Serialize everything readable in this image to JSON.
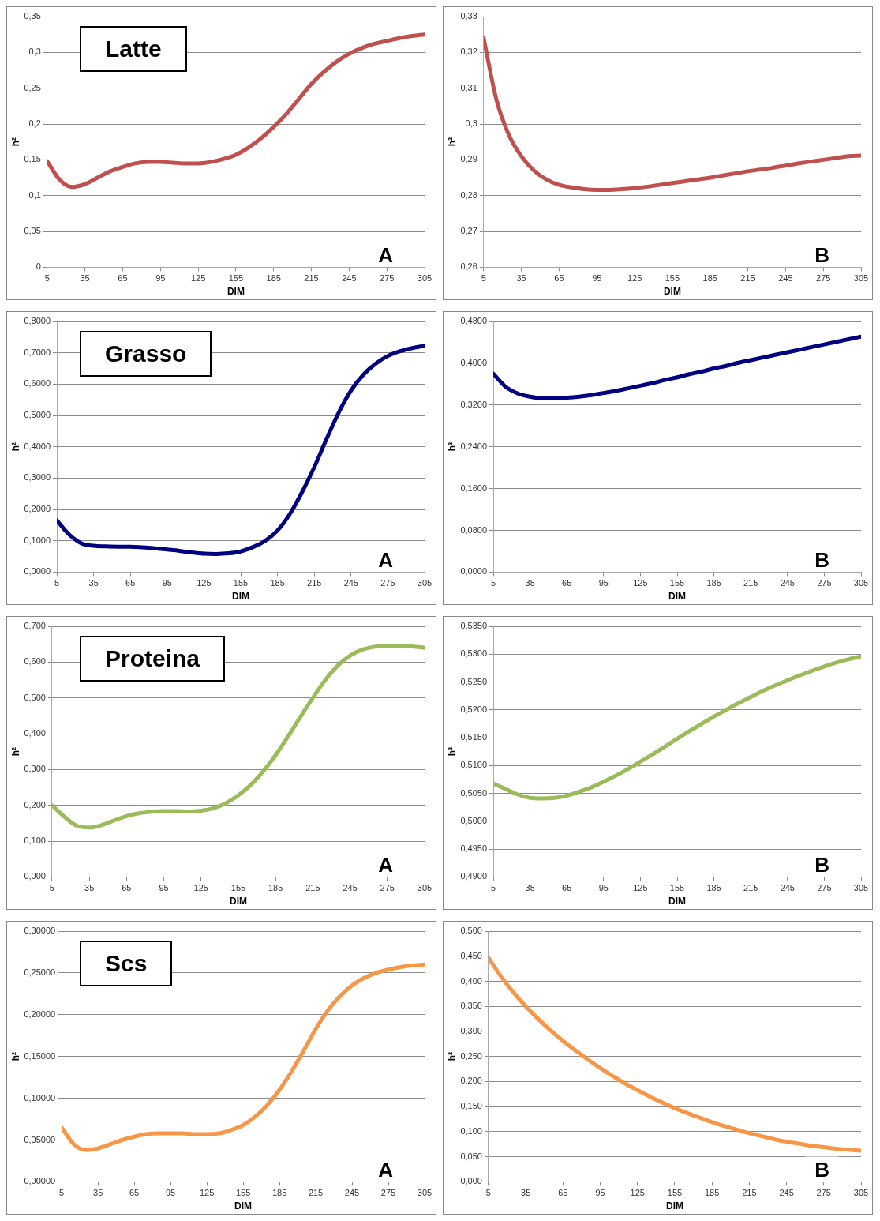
{
  "chart_data": [
    {
      "type": "line",
      "title": "Latte",
      "xlabel": "DIM",
      "ylabel": "h²",
      "annotations": [
        "A"
      ],
      "marker": "none",
      "grid": "y",
      "xlim": [
        5,
        305
      ],
      "xticks": [
        5,
        35,
        65,
        95,
        125,
        155,
        185,
        215,
        245,
        275,
        305
      ],
      "x": [
        5,
        15,
        25,
        35,
        45,
        55,
        65,
        75,
        85,
        95,
        105,
        115,
        125,
        135,
        145,
        155,
        165,
        175,
        185,
        195,
        205,
        215,
        225,
        235,
        245,
        255,
        265,
        275,
        285,
        295,
        305
      ],
      "series": [
        {
          "color": "#c0504d",
          "values": [
            0.148,
            0.122,
            0.112,
            0.116,
            0.125,
            0.134,
            0.14,
            0.145,
            0.147,
            0.147,
            0.146,
            0.145,
            0.145,
            0.147,
            0.151,
            0.157,
            0.167,
            0.18,
            0.196,
            0.214,
            0.235,
            0.256,
            0.273,
            0.287,
            0.298,
            0.306,
            0.312,
            0.316,
            0.32,
            0.323,
            0.325
          ]
        }
      ],
      "ylim": [
        0,
        0.35
      ],
      "yticks": [
        0,
        {
          "value": 0.05,
          "label": "0,05"
        },
        {
          "value": 0.1,
          "label": "0,1"
        },
        {
          "value": 0.15,
          "label": "0,15"
        },
        {
          "value": 0.2,
          "label": "0,2"
        },
        {
          "value": 0.25,
          "label": "0,25"
        },
        {
          "value": 0.3,
          "label": "0,3"
        },
        {
          "value": 0.35,
          "label": "0,35"
        }
      ]
    },
    {
      "type": "line",
      "xlabel": "DIM",
      "ylabel": "h²",
      "annotations": [
        "B"
      ],
      "marker": "none",
      "grid": "y",
      "xlim": [
        5,
        305
      ],
      "xticks": [
        5,
        35,
        65,
        95,
        125,
        155,
        185,
        215,
        245,
        275,
        305
      ],
      "x": [
        5,
        15,
        25,
        35,
        45,
        55,
        65,
        75,
        85,
        95,
        105,
        115,
        125,
        135,
        145,
        155,
        165,
        175,
        185,
        195,
        205,
        215,
        225,
        235,
        245,
        255,
        265,
        275,
        285,
        295,
        305
      ],
      "series": [
        {
          "color": "#c0504d",
          "values": [
            0.324,
            0.307,
            0.297,
            0.291,
            0.287,
            0.2845,
            0.283,
            0.2823,
            0.2818,
            0.2816,
            0.2816,
            0.2818,
            0.2821,
            0.2825,
            0.283,
            0.2835,
            0.284,
            0.2845,
            0.285,
            0.2856,
            0.2862,
            0.2868,
            0.2873,
            0.2878,
            0.2884,
            0.289,
            0.2895,
            0.29,
            0.2905,
            0.291,
            0.2912
          ]
        }
      ],
      "ylim": [
        0.26,
        0.33
      ],
      "yticks": [
        {
          "value": 0.26,
          "label": "0,26"
        },
        {
          "value": 0.27,
          "label": "0,27"
        },
        {
          "value": 0.28,
          "label": "0,28"
        },
        {
          "value": 0.29,
          "label": "0,29"
        },
        {
          "value": 0.3,
          "label": "0,3"
        },
        {
          "value": 0.31,
          "label": "0,31"
        },
        {
          "value": 0.32,
          "label": "0,32"
        },
        {
          "value": 0.33,
          "label": "0,33"
        }
      ]
    },
    {
      "type": "line",
      "title": "Grasso",
      "xlabel": "DIM",
      "ylabel": "h²",
      "annotations": [
        "A"
      ],
      "marker": "none",
      "grid": "y",
      "xlim": [
        5,
        305
      ],
      "xticks": [
        5,
        35,
        65,
        95,
        125,
        155,
        185,
        215,
        245,
        275,
        305
      ],
      "x": [
        5,
        15,
        25,
        35,
        45,
        55,
        65,
        75,
        85,
        95,
        105,
        115,
        125,
        135,
        145,
        155,
        165,
        175,
        185,
        195,
        205,
        215,
        225,
        235,
        245,
        255,
        265,
        275,
        285,
        295,
        305
      ],
      "series": [
        {
          "color": "#000080",
          "values": [
            0.165,
            0.12,
            0.092,
            0.084,
            0.082,
            0.081,
            0.081,
            0.079,
            0.076,
            0.072,
            0.068,
            0.063,
            0.059,
            0.058,
            0.06,
            0.066,
            0.08,
            0.1,
            0.133,
            0.185,
            0.255,
            0.335,
            0.425,
            0.51,
            0.58,
            0.63,
            0.665,
            0.69,
            0.705,
            0.715,
            0.722
          ]
        }
      ],
      "ylim": [
        0,
        0.8
      ],
      "yticks": [
        {
          "value": 0,
          "label": "0,0000"
        },
        {
          "value": 0.1,
          "label": "0,1000"
        },
        {
          "value": 0.2,
          "label": "0,2000"
        },
        {
          "value": 0.3,
          "label": "0,3000"
        },
        {
          "value": 0.4,
          "label": "0,4000"
        },
        {
          "value": 0.5,
          "label": "0,5000"
        },
        {
          "value": 0.6,
          "label": "0,6000"
        },
        {
          "value": 0.7,
          "label": "0,7000"
        },
        {
          "value": 0.8,
          "label": "0,8000"
        }
      ]
    },
    {
      "type": "line",
      "ylabel": "h²",
      "annotations": [
        "B"
      ],
      "marker": "none",
      "grid": "y",
      "xlim": [
        5,
        305
      ],
      "xticks": [
        5,
        35,
        65,
        95,
        125,
        155,
        185,
        215,
        245,
        275,
        305
      ],
      "xlabel": "DIM",
      "x": [
        5,
        15,
        25,
        35,
        45,
        55,
        65,
        75,
        85,
        95,
        105,
        115,
        125,
        135,
        145,
        155,
        165,
        175,
        185,
        195,
        205,
        215,
        225,
        235,
        245,
        255,
        265,
        275,
        285,
        295,
        305
      ],
      "series": [
        {
          "color": "#000080",
          "values": [
            0.38,
            0.355,
            0.342,
            0.336,
            0.333,
            0.333,
            0.334,
            0.336,
            0.339,
            0.343,
            0.347,
            0.352,
            0.357,
            0.362,
            0.368,
            0.373,
            0.379,
            0.384,
            0.39,
            0.395,
            0.401,
            0.406,
            0.411,
            0.416,
            0.421,
            0.426,
            0.431,
            0.436,
            0.441,
            0.446,
            0.451
          ]
        }
      ],
      "ylim": [
        0,
        0.48
      ],
      "yticks": [
        {
          "value": 0,
          "label": "0,0000"
        },
        {
          "value": 0.08,
          "label": "0,0800"
        },
        {
          "value": 0.16,
          "label": "0,1600"
        },
        {
          "value": 0.24,
          "label": "0,2400"
        },
        {
          "value": 0.32,
          "label": "0,3200"
        },
        {
          "value": 0.4,
          "label": "0,4000"
        },
        {
          "value": 0.48,
          "label": "0,4800"
        }
      ]
    },
    {
      "type": "line",
      "title": "Proteina",
      "xlabel": "DIM",
      "ylabel": "h²",
      "annotations": [
        "A"
      ],
      "marker": "none",
      "grid": "y",
      "xlim": [
        5,
        305
      ],
      "xticks": [
        5,
        35,
        65,
        95,
        125,
        155,
        185,
        215,
        245,
        275,
        305
      ],
      "x": [
        5,
        15,
        25,
        35,
        45,
        55,
        65,
        75,
        85,
        95,
        105,
        115,
        125,
        135,
        145,
        155,
        165,
        175,
        185,
        195,
        205,
        215,
        225,
        235,
        245,
        255,
        265,
        275,
        285,
        295,
        305
      ],
      "series": [
        {
          "color": "#9bbb59",
          "values": [
            0.2,
            0.168,
            0.143,
            0.138,
            0.145,
            0.158,
            0.17,
            0.178,
            0.182,
            0.184,
            0.184,
            0.183,
            0.185,
            0.192,
            0.206,
            0.228,
            0.257,
            0.295,
            0.34,
            0.392,
            0.447,
            0.5,
            0.55,
            0.59,
            0.618,
            0.635,
            0.643,
            0.646,
            0.646,
            0.644,
            0.64
          ]
        }
      ],
      "ylim": [
        0,
        0.7
      ],
      "yticks": [
        {
          "value": 0,
          "label": "0,000"
        },
        {
          "value": 0.1,
          "label": "0,100"
        },
        {
          "value": 0.2,
          "label": "0,200"
        },
        {
          "value": 0.3,
          "label": "0,300"
        },
        {
          "value": 0.4,
          "label": "0,400"
        },
        {
          "value": 0.5,
          "label": "0,500"
        },
        {
          "value": 0.6,
          "label": "0,600"
        },
        {
          "value": 0.7,
          "label": "0,700"
        }
      ]
    },
    {
      "type": "line",
      "xlabel": "DIM",
      "ylabel": "h²",
      "annotations": [
        "B"
      ],
      "marker": "none",
      "grid": "y",
      "xlim": [
        5,
        305
      ],
      "xticks": [
        5,
        35,
        65,
        95,
        125,
        155,
        185,
        215,
        245,
        275,
        305
      ],
      "x": [
        5,
        15,
        25,
        35,
        45,
        55,
        65,
        75,
        85,
        95,
        105,
        115,
        125,
        135,
        145,
        155,
        165,
        175,
        185,
        195,
        205,
        215,
        225,
        235,
        245,
        255,
        265,
        275,
        285,
        295,
        305
      ],
      "series": [
        {
          "color": "#9bbb59",
          "values": [
            0.5068,
            0.5058,
            0.5048,
            0.5042,
            0.5041,
            0.5042,
            0.5046,
            0.5053,
            0.5061,
            0.5071,
            0.5082,
            0.5094,
            0.5107,
            0.512,
            0.5134,
            0.5148,
            0.5162,
            0.5175,
            0.5188,
            0.52,
            0.5212,
            0.5223,
            0.5234,
            0.5244,
            0.5253,
            0.5262,
            0.527,
            0.5278,
            0.5285,
            0.5291,
            0.5296
          ]
        }
      ],
      "ylim": [
        0.49,
        0.535
      ],
      "yticks": [
        {
          "value": 0.49,
          "label": "0,4900"
        },
        {
          "value": 0.495,
          "label": "0,4950"
        },
        {
          "value": 0.5,
          "label": "0,5000"
        },
        {
          "value": 0.505,
          "label": "0,5050"
        },
        {
          "value": 0.51,
          "label": "0,5100"
        },
        {
          "value": 0.515,
          "label": "0,5150"
        },
        {
          "value": 0.52,
          "label": "0,5200"
        },
        {
          "value": 0.525,
          "label": "0,5250"
        },
        {
          "value": 0.53,
          "label": "0,5300"
        },
        {
          "value": 0.535,
          "label": "0,5350"
        }
      ]
    },
    {
      "type": "line",
      "title": "Scs",
      "xlabel": "DIM",
      "ylabel": "h²",
      "annotations": [
        "A"
      ],
      "marker": "none",
      "grid": "y",
      "xlim": [
        5,
        305
      ],
      "xticks": [
        5,
        35,
        65,
        95,
        125,
        155,
        185,
        215,
        245,
        275,
        305
      ],
      "x": [
        5,
        15,
        25,
        35,
        45,
        55,
        65,
        75,
        85,
        95,
        105,
        115,
        125,
        135,
        145,
        155,
        165,
        175,
        185,
        195,
        205,
        215,
        225,
        235,
        245,
        255,
        265,
        275,
        285,
        295,
        305
      ],
      "series": [
        {
          "color": "#f79646",
          "values": [
            0.065,
            0.045,
            0.038,
            0.04,
            0.045,
            0.05,
            0.054,
            0.057,
            0.058,
            0.058,
            0.058,
            0.057,
            0.057,
            0.058,
            0.062,
            0.068,
            0.078,
            0.092,
            0.11,
            0.132,
            0.157,
            0.183,
            0.205,
            0.222,
            0.235,
            0.244,
            0.25,
            0.254,
            0.257,
            0.259,
            0.26
          ]
        }
      ],
      "ylim": [
        0,
        0.3
      ],
      "yticks": [
        {
          "value": 0,
          "label": "0,00000"
        },
        {
          "value": 0.05,
          "label": "0,05000"
        },
        {
          "value": 0.1,
          "label": "0,10000"
        },
        {
          "value": 0.15,
          "label": "0,15000"
        },
        {
          "value": 0.2,
          "label": "0,20000"
        },
        {
          "value": 0.25,
          "label": "0,25000"
        },
        {
          "value": 0.3,
          "label": "0,30000"
        }
      ]
    },
    {
      "type": "line",
      "xlabel": "DIM",
      "ylabel": "h²",
      "annotations": [
        "B"
      ],
      "marker": "none",
      "grid": "y",
      "xlim": [
        5,
        305
      ],
      "xticks": [
        5,
        35,
        65,
        95,
        125,
        155,
        185,
        215,
        245,
        275,
        305
      ],
      "x": [
        5,
        15,
        25,
        35,
        45,
        55,
        65,
        75,
        85,
        95,
        105,
        115,
        125,
        135,
        145,
        155,
        165,
        175,
        185,
        195,
        205,
        215,
        225,
        235,
        245,
        255,
        265,
        275,
        285,
        295,
        305
      ],
      "series": [
        {
          "color": "#f79646",
          "values": [
            0.447,
            0.41,
            0.378,
            0.35,
            0.325,
            0.302,
            0.281,
            0.262,
            0.244,
            0.227,
            0.211,
            0.196,
            0.183,
            0.17,
            0.158,
            0.147,
            0.137,
            0.128,
            0.119,
            0.111,
            0.104,
            0.097,
            0.091,
            0.085,
            0.08,
            0.076,
            0.072,
            0.069,
            0.066,
            0.064,
            0.062
          ]
        }
      ],
      "ylim": [
        0,
        0.5
      ],
      "yticks": [
        {
          "value": 0,
          "label": "0,000"
        },
        {
          "value": 0.05,
          "label": "0,050"
        },
        {
          "value": 0.1,
          "label": "0,100"
        },
        {
          "value": 0.15,
          "label": "0,150"
        },
        {
          "value": 0.2,
          "label": "0,200"
        },
        {
          "value": 0.25,
          "label": "0,250"
        },
        {
          "value": 0.3,
          "label": "0,300"
        },
        {
          "value": 0.35,
          "label": "0,350"
        },
        {
          "value": 0.4,
          "label": "0,400"
        },
        {
          "value": 0.45,
          "label": "0,450"
        },
        {
          "value": 0.5,
          "label": "0,500"
        }
      ]
    }
  ]
}
